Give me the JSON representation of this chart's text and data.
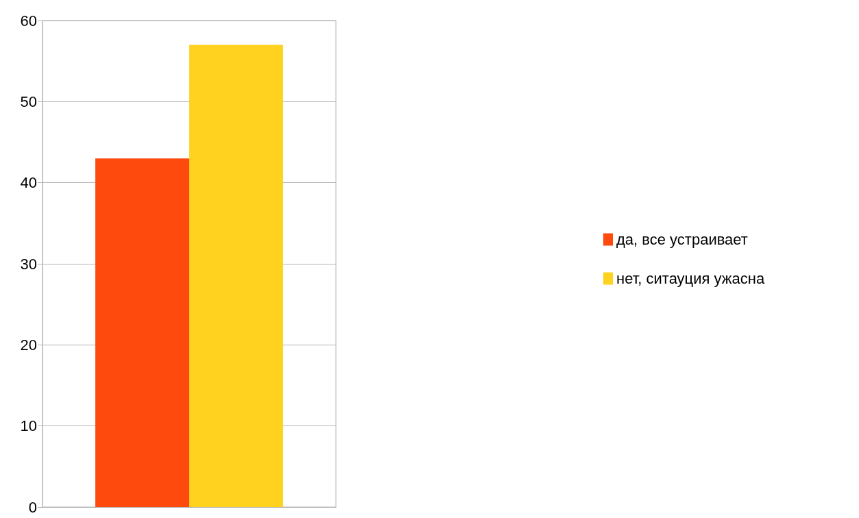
{
  "chart_data": {
    "type": "bar",
    "categories": [
      null
    ],
    "series": [
      {
        "name": "да, все устраивает",
        "color": "#fe4a0c",
        "values": [
          43
        ]
      },
      {
        "name": "нет, ситауция ужасна",
        "color": "#ffd21f",
        "values": [
          57
        ]
      }
    ],
    "ylim": [
      0,
      60
    ],
    "yticks": [
      0,
      10,
      20,
      30,
      40,
      50,
      60
    ],
    "grid": "y",
    "legend": "right"
  }
}
